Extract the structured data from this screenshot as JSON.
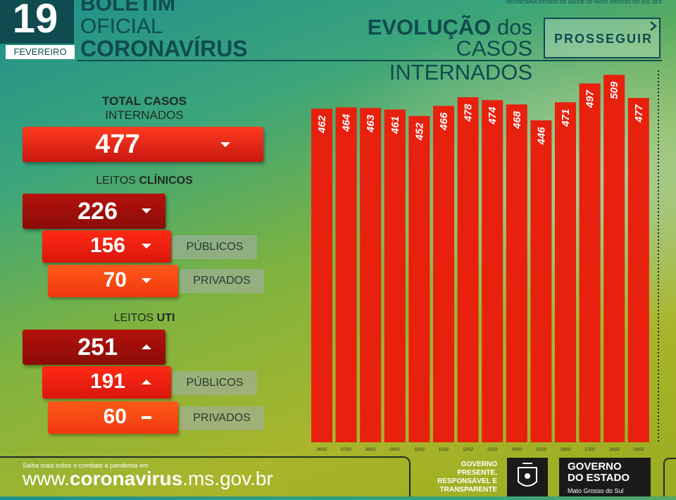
{
  "header": {
    "day": "19",
    "month": "FEVEREIRO",
    "bulletin_line1": "BOLETIM",
    "bulletin_line2": "OFICIAL",
    "bulletin_line3": "CORONAVÍRUS",
    "top_small_text": "SECRETARIA ESTADO DE SAÚDE DE MATO GROSSO DO SUL SES",
    "evolution_bold": "EVOLUÇÃO",
    "evolution_light": "dos",
    "evolution_line2": "CASOS INTERNADOS",
    "program_logo": "PROSSEGUIR"
  },
  "total": {
    "title": "TOTAL CASOS",
    "subtitle": "INTERNADOS",
    "value": "477",
    "trend": "down"
  },
  "clinicos": {
    "label_light": "LEITOS",
    "label_bold": "CLÍNICOS",
    "total": "226",
    "total_trend": "down",
    "publicos": "156",
    "publicos_trend": "down",
    "publicos_label": "PÚBLICOS",
    "privados": "70",
    "privados_trend": "down",
    "privados_label": "PRIVADOS"
  },
  "uti": {
    "label_light": "LEITOS",
    "label_bold": "UTI",
    "total": "251",
    "total_trend": "up",
    "publicos": "191",
    "publicos_trend": "up",
    "publicos_label": "PÚBLICOS",
    "privados": "60",
    "privados_trend": "equal",
    "privados_label": "PRIVADOS"
  },
  "chart_data": {
    "type": "bar",
    "title": "",
    "xlabel": "",
    "ylabel": "",
    "categories": [
      "06/02",
      "07/02",
      "08/02",
      "09/02",
      "10/02",
      "11/02",
      "12/02",
      "13/02",
      "14/02",
      "15/02",
      "16/02",
      "17/02",
      "18/02",
      "19/02"
    ],
    "values": [
      462,
      464,
      463,
      461,
      452,
      466,
      478,
      474,
      468,
      446,
      471,
      497,
      509,
      477
    ],
    "ylim": [
      0,
      520
    ],
    "grid": false,
    "bar_color": "#e8200e"
  },
  "footer": {
    "small_text": "Saiba mais sobre o combate à pandemia em",
    "url_pre": "www.",
    "url_bold": "coronavirus",
    "url_post": ".ms.gov.br",
    "slogan_1": "GOVERNO",
    "slogan_2": "PRESENTE,",
    "slogan_3": "RESPONSÁVEL E",
    "slogan_4": "TRANSPARENTE",
    "gov_name_1": "GOVERNO",
    "gov_name_2": "DO ESTADO",
    "gov_state": "Mato Grosso do Sul"
  }
}
